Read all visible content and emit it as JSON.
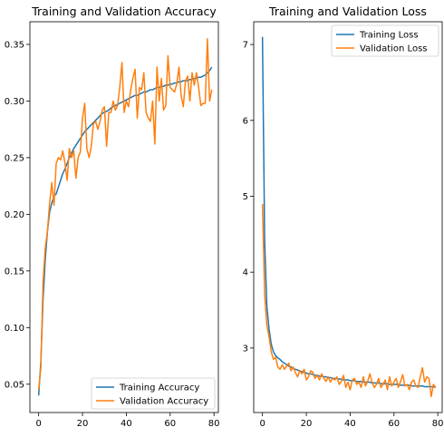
{
  "chart_data": [
    {
      "type": "line",
      "title": "Training and Validation Accuracy",
      "xlabel": "",
      "ylabel": "",
      "xlim": [
        -4,
        82
      ],
      "ylim": [
        0.025,
        0.37
      ],
      "xticks": [
        0,
        20,
        40,
        60,
        80
      ],
      "yticks": [
        0.05,
        0.1,
        0.15,
        0.2,
        0.25,
        0.3,
        0.35
      ],
      "ytick_labels": [
        "0.05",
        "0.10",
        "0.15",
        "0.20",
        "0.25",
        "0.30",
        "0.35"
      ],
      "grid": false,
      "legend_position": "lower-right",
      "series": [
        {
          "name": "Training Accuracy",
          "color": "#1f77b4",
          "x": [
            0,
            1,
            2,
            3,
            4,
            5,
            6,
            7,
            8,
            9,
            10,
            11,
            12,
            13,
            14,
            15,
            16,
            17,
            18,
            19,
            20,
            21,
            22,
            23,
            24,
            25,
            26,
            27,
            28,
            29,
            30,
            31,
            32,
            33,
            34,
            35,
            36,
            37,
            38,
            39,
            40,
            41,
            42,
            43,
            44,
            45,
            46,
            47,
            48,
            49,
            50,
            51,
            52,
            53,
            54,
            55,
            56,
            57,
            58,
            59,
            60,
            61,
            62,
            63,
            64,
            65,
            66,
            67,
            68,
            69,
            70,
            71,
            72,
            73,
            74,
            75,
            76,
            77,
            78,
            79
          ],
          "values": [
            0.04,
            0.07,
            0.125,
            0.16,
            0.185,
            0.202,
            0.21,
            0.216,
            0.218,
            0.224,
            0.23,
            0.236,
            0.24,
            0.245,
            0.25,
            0.254,
            0.258,
            0.261,
            0.264,
            0.267,
            0.27,
            0.273,
            0.275,
            0.277,
            0.279,
            0.281,
            0.283,
            0.285,
            0.287,
            0.289,
            0.29,
            0.291,
            0.292,
            0.294,
            0.295,
            0.296,
            0.297,
            0.298,
            0.299,
            0.3,
            0.301,
            0.302,
            0.303,
            0.304,
            0.305,
            0.305,
            0.306,
            0.307,
            0.308,
            0.308,
            0.309,
            0.31,
            0.31,
            0.311,
            0.312,
            0.312,
            0.313,
            0.313,
            0.314,
            0.314,
            0.315,
            0.315,
            0.316,
            0.316,
            0.317,
            0.317,
            0.318,
            0.318,
            0.318,
            0.319,
            0.319,
            0.32,
            0.32,
            0.321,
            0.321,
            0.322,
            0.323,
            0.325,
            0.327,
            0.33
          ]
        },
        {
          "name": "Validation Accuracy",
          "color": "#ff7f0e",
          "x": [
            0,
            1,
            2,
            3,
            4,
            5,
            6,
            7,
            8,
            9,
            10,
            11,
            12,
            13,
            14,
            15,
            16,
            17,
            18,
            19,
            20,
            21,
            22,
            23,
            24,
            25,
            26,
            27,
            28,
            29,
            30,
            31,
            32,
            33,
            34,
            35,
            36,
            37,
            38,
            39,
            40,
            41,
            42,
            43,
            44,
            45,
            46,
            47,
            48,
            49,
            50,
            51,
            52,
            53,
            54,
            55,
            56,
            57,
            58,
            59,
            60,
            61,
            62,
            63,
            64,
            65,
            66,
            67,
            68,
            69,
            70,
            71,
            72,
            73,
            74,
            75,
            76,
            77,
            78,
            79
          ],
          "values": [
            0.045,
            0.065,
            0.14,
            0.17,
            0.185,
            0.21,
            0.228,
            0.208,
            0.245,
            0.25,
            0.248,
            0.256,
            0.245,
            0.23,
            0.258,
            0.25,
            0.256,
            0.232,
            0.25,
            0.255,
            0.285,
            0.298,
            0.258,
            0.25,
            0.26,
            0.28,
            0.282,
            0.275,
            0.282,
            0.292,
            0.295,
            0.26,
            0.29,
            0.29,
            0.3,
            0.292,
            0.296,
            0.312,
            0.334,
            0.29,
            0.3,
            0.295,
            0.31,
            0.32,
            0.328,
            0.285,
            0.312,
            0.31,
            0.325,
            0.29,
            0.285,
            0.282,
            0.3,
            0.262,
            0.33,
            0.3,
            0.32,
            0.292,
            0.296,
            0.34,
            0.312,
            0.31,
            0.308,
            0.315,
            0.33,
            0.305,
            0.295,
            0.318,
            0.322,
            0.3,
            0.325,
            0.314,
            0.325,
            0.312,
            0.296,
            0.298,
            0.298,
            0.355,
            0.3,
            0.31
          ]
        }
      ]
    },
    {
      "type": "line",
      "title": "Training and Validation Loss",
      "xlabel": "",
      "ylabel": "",
      "xlim": [
        -4,
        82
      ],
      "ylim": [
        2.15,
        7.3
      ],
      "xticks": [
        0,
        20,
        40,
        60,
        80
      ],
      "yticks": [
        3,
        4,
        5,
        6,
        7
      ],
      "ytick_labels": [
        "3",
        "4",
        "5",
        "6",
        "7"
      ],
      "grid": false,
      "legend_position": "top-right",
      "series": [
        {
          "name": "Training Loss",
          "color": "#1f77b4",
          "x": [
            0,
            1,
            2,
            3,
            4,
            5,
            6,
            7,
            8,
            9,
            10,
            11,
            12,
            13,
            14,
            15,
            16,
            17,
            18,
            19,
            20,
            21,
            22,
            23,
            24,
            25,
            26,
            27,
            28,
            29,
            30,
            31,
            32,
            33,
            34,
            35,
            36,
            37,
            38,
            39,
            40,
            41,
            42,
            43,
            44,
            45,
            46,
            47,
            48,
            49,
            50,
            51,
            52,
            53,
            54,
            55,
            56,
            57,
            58,
            59,
            60,
            61,
            62,
            63,
            64,
            65,
            66,
            67,
            68,
            69,
            70,
            71,
            72,
            73,
            74,
            75,
            76,
            77,
            78,
            79
          ],
          "values": [
            7.1,
            4.4,
            3.55,
            3.25,
            3.05,
            2.95,
            2.9,
            2.87,
            2.85,
            2.82,
            2.8,
            2.78,
            2.76,
            2.75,
            2.73,
            2.72,
            2.71,
            2.7,
            2.69,
            2.68,
            2.67,
            2.66,
            2.66,
            2.65,
            2.64,
            2.64,
            2.63,
            2.63,
            2.62,
            2.62,
            2.61,
            2.61,
            2.6,
            2.6,
            2.6,
            2.59,
            2.59,
            2.58,
            2.58,
            2.58,
            2.57,
            2.57,
            2.57,
            2.56,
            2.56,
            2.56,
            2.55,
            2.55,
            2.55,
            2.55,
            2.54,
            2.54,
            2.54,
            2.54,
            2.53,
            2.53,
            2.53,
            2.53,
            2.52,
            2.52,
            2.52,
            2.52,
            2.52,
            2.51,
            2.51,
            2.51,
            2.51,
            2.51,
            2.5,
            2.5,
            2.5,
            2.5,
            2.5,
            2.5,
            2.49,
            2.49,
            2.49,
            2.49,
            2.49,
            2.48
          ]
        },
        {
          "name": "Validation Loss",
          "color": "#ff7f0e",
          "x": [
            0,
            1,
            2,
            3,
            4,
            5,
            6,
            7,
            8,
            9,
            10,
            11,
            12,
            13,
            14,
            15,
            16,
            17,
            18,
            19,
            20,
            21,
            22,
            23,
            24,
            25,
            26,
            27,
            28,
            29,
            30,
            31,
            32,
            33,
            34,
            35,
            36,
            37,
            38,
            39,
            40,
            41,
            42,
            43,
            44,
            45,
            46,
            47,
            48,
            49,
            50,
            51,
            52,
            53,
            54,
            55,
            56,
            57,
            58,
            59,
            60,
            61,
            62,
            63,
            64,
            65,
            66,
            67,
            68,
            69,
            70,
            71,
            72,
            73,
            74,
            75,
            76,
            77,
            78,
            79
          ],
          "values": [
            4.9,
            3.7,
            3.3,
            3.15,
            2.95,
            2.85,
            2.88,
            2.75,
            2.72,
            2.78,
            2.72,
            2.76,
            2.8,
            2.7,
            2.75,
            2.68,
            2.62,
            2.7,
            2.66,
            2.72,
            2.58,
            2.62,
            2.7,
            2.68,
            2.6,
            2.64,
            2.58,
            2.66,
            2.6,
            2.56,
            2.62,
            2.55,
            2.6,
            2.58,
            2.62,
            2.52,
            2.56,
            2.64,
            2.48,
            2.55,
            2.45,
            2.58,
            2.6,
            2.52,
            2.55,
            2.48,
            2.62,
            2.5,
            2.56,
            2.66,
            2.55,
            2.48,
            2.52,
            2.6,
            2.48,
            2.52,
            2.58,
            2.45,
            2.62,
            2.5,
            2.55,
            2.6,
            2.48,
            2.56,
            2.65,
            2.5,
            2.52,
            2.45,
            2.55,
            2.58,
            2.5,
            2.48,
            2.62,
            2.74,
            2.55,
            2.62,
            2.6,
            2.36,
            2.52,
            2.48
          ]
        }
      ]
    }
  ]
}
